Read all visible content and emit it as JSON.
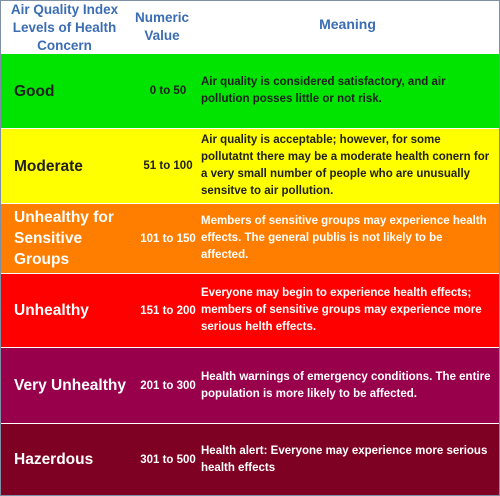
{
  "header": {
    "col1_line1": "Air Quality Index",
    "col1_line2": "Levels of Health",
    "col1_line3": "Concern",
    "col2_line1": "Numeric",
    "col2_line2": "Value",
    "col3": "Meaning"
  },
  "rows": [
    {
      "level": "Good",
      "value": "0 to 50",
      "meaning": "Air quality is considered satisfactory, and air pollution posses little or not risk.",
      "color": "#00e400"
    },
    {
      "level": "Moderate",
      "value": "51 to 100",
      "meaning": "Air quality is acceptable; however, for some pollutatnt there may be a moderate health conern for a very small number of people who are unusually sensitve to air pollution.",
      "color": "#ffff00"
    },
    {
      "level": "Unhealthy for Sensitive Groups",
      "value": "101 to 150",
      "meaning": "Members of sensitive groups may experience health effects. The general publis is not likely to be affected.",
      "color": "#ff7e00"
    },
    {
      "level": "Unhealthy",
      "value": "151 to 200",
      "meaning": "Everyone may begin to experience health effects; members of sensitive groups may experience more serious helth effects.",
      "color": "#ff0000"
    },
    {
      "level": "Very Unhealthy",
      "value": "201 to 300",
      "meaning": "Health warnings of emergency conditions. The entire population is more likely to be affected.",
      "color": "#99004c"
    },
    {
      "level": "Hazerdous",
      "value": "301 to 500",
      "meaning": "Health alert: Everyone may experience more serious health effects",
      "color": "#7e0023"
    }
  ]
}
